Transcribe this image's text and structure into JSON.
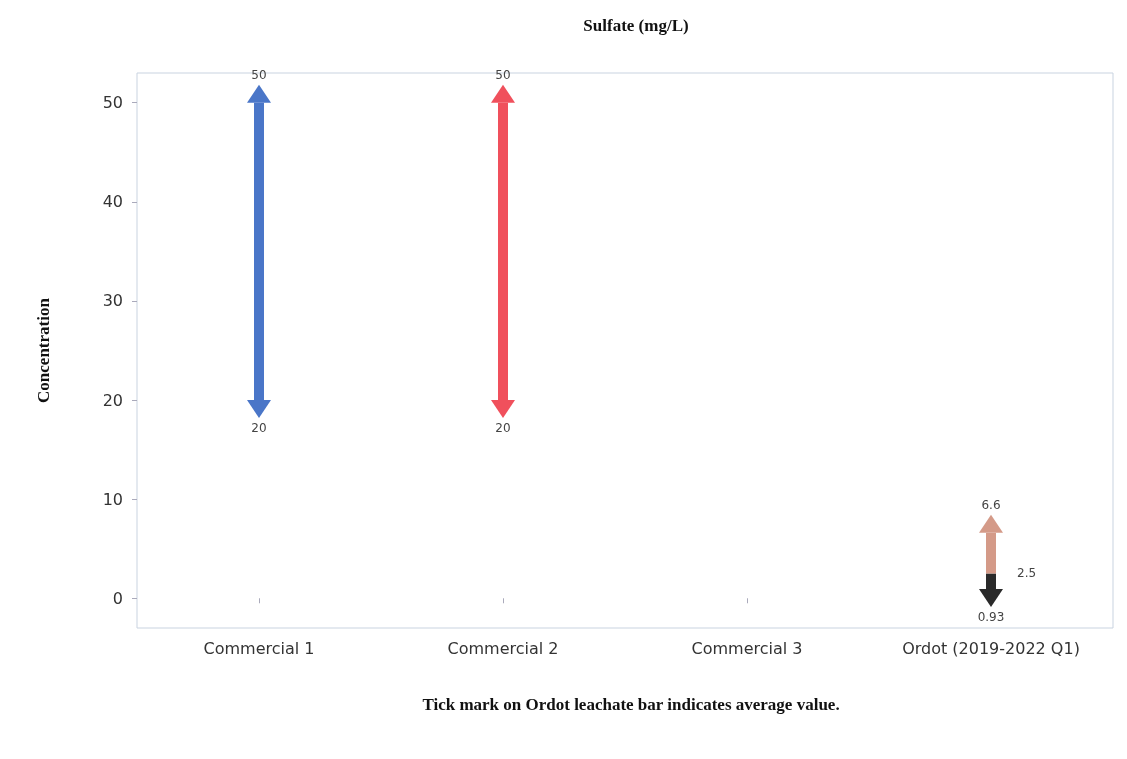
{
  "chart_data": {
    "type": "bar",
    "title": "Sulfate (mg/L)",
    "ylabel": "Concentration",
    "categories": [
      "Commercial 1",
      "Commercial 2",
      "Commercial 3",
      "Ordot (2019-2022 Q1)"
    ],
    "stacked": true,
    "series": [
      {
        "colors": [
          "#4a76c8",
          "#f0505c",
          null,
          "#2a2a2a"
        ],
        "base": [
          20,
          20,
          null,
          0.93
        ],
        "values": [
          30,
          30,
          null,
          1.57
        ]
      },
      {
        "color": "#d49a88",
        "values": [
          null,
          null,
          null,
          4.1
        ]
      }
    ],
    "ylim": [
      -3,
      53
    ],
    "yticks": [
      0,
      10,
      20,
      30,
      40,
      50
    ],
    "grid": false,
    "annotations": [
      {
        "text": "50",
        "x": "Commercial 1",
        "y": 50
      },
      {
        "text": "20",
        "x": "Commercial 1",
        "y": 20
      },
      {
        "text": "50",
        "x": "Commercial 2",
        "y": 50
      },
      {
        "text": "20",
        "x": "Commercial 2",
        "y": 20
      },
      {
        "text": "6.6",
        "x": "Ordot (2019-2022 Q1)",
        "y": 6.6
      },
      {
        "text": "2.5",
        "x": "Ordot (2019-2022 Q1)",
        "y": 2.5
      },
      {
        "text": "0.93",
        "x": "Ordot (2019-2022 Q1)",
        "y": 0.93
      },
      "Tick mark on Ordot leachate bar indicates average value."
    ]
  }
}
